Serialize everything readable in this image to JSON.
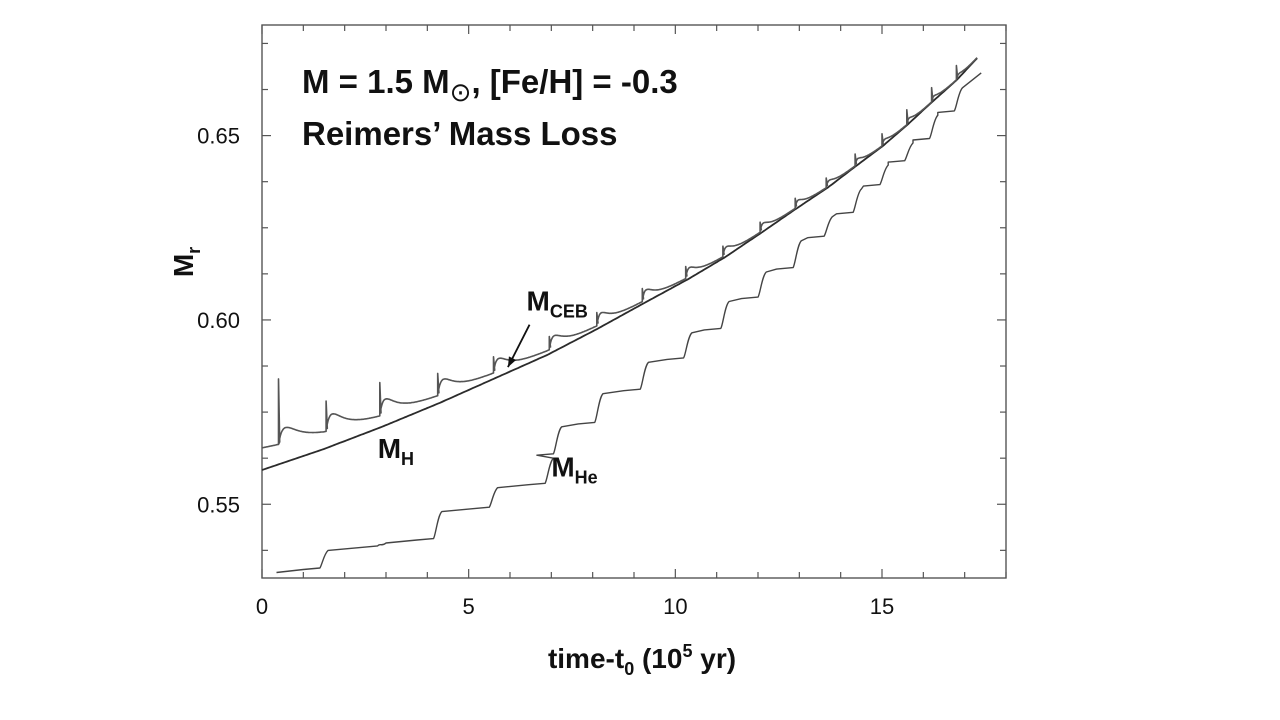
{
  "chart_data": {
    "type": "line",
    "title_line1": "M = 1.5 M",
    "title_sun": "⊙",
    "title_line1_rest": ", [Fe/H] = -0.3",
    "title_line2": "Reimers’ Mass Loss",
    "xlabel": {
      "main": "time-t",
      "sub": "0",
      "mid": " (10",
      "sup": "5",
      "end": " yr)"
    },
    "ylabel": {
      "main": "M",
      "sub": "r"
    },
    "xlim": [
      0,
      18
    ],
    "ylim": [
      0.53,
      0.68
    ],
    "x_ticks": [
      0,
      5,
      10,
      15
    ],
    "x_tick_labels": [
      "0",
      "5",
      "10",
      "15"
    ],
    "x_minor_step": 1,
    "y_ticks": [
      0.55,
      0.6,
      0.65
    ],
    "y_tick_labels": [
      "0.55",
      "0.60",
      "0.65"
    ],
    "y_minor_step": 0.0125,
    "annotations": {
      "mceb": {
        "main": "M",
        "sub": "CEB",
        "x": 6.4,
        "y": 0.6025,
        "arrow_to": [
          5.95,
          0.5872
        ]
      },
      "mh": {
        "main": "M",
        "sub": "H",
        "x": 2.8,
        "y": 0.5625
      },
      "mhe": {
        "main": "M",
        "sub": "He",
        "x": 7.0,
        "y": 0.5575
      }
    },
    "series": [
      {
        "name": "M_H",
        "x": [
          0,
          1.5,
          2.9,
          4.3,
          5.6,
          6.9,
          8.1,
          9.2,
          10.3,
          11.2,
          12.1,
          12.9,
          13.7,
          14.4,
          15.0,
          15.6,
          16.2,
          16.8,
          17.3
        ],
        "y": [
          0.5593,
          0.565,
          0.571,
          0.5775,
          0.584,
          0.5905,
          0.5975,
          0.6043,
          0.611,
          0.617,
          0.6238,
          0.63,
          0.636,
          0.642,
          0.647,
          0.6528,
          0.659,
          0.665,
          0.671
        ]
      },
      {
        "name": "M_CEB",
        "base_offset": 0.006,
        "pulses": [
          {
            "t": 0.4,
            "spike": 0.584,
            "bump": 0.0085,
            "w": 0.25
          },
          {
            "t": 1.55,
            "spike": 0.578,
            "bump": 0.009,
            "w": 0.22
          },
          {
            "t": 2.85,
            "spike": 0.583,
            "bump": 0.0085,
            "w": 0.2
          },
          {
            "t": 4.25,
            "spike": 0.5855,
            "bump": 0.008,
            "w": 0.2
          },
          {
            "t": 5.6,
            "spike": 0.59,
            "bump": 0.007,
            "w": 0.18
          },
          {
            "t": 6.95,
            "spike": 0.5955,
            "bump": 0.0065,
            "w": 0.17
          },
          {
            "t": 8.1,
            "spike": 0.602,
            "bump": 0.006,
            "w": 0.15
          },
          {
            "t": 9.2,
            "spike": 0.6085,
            "bump": 0.0055,
            "w": 0.14
          },
          {
            "t": 10.25,
            "spike": 0.6145,
            "bump": 0.005,
            "w": 0.13
          },
          {
            "t": 11.15,
            "spike": 0.62,
            "bump": 0.0045,
            "w": 0.12
          },
          {
            "t": 12.05,
            "spike": 0.6265,
            "bump": 0.004,
            "w": 0.11
          },
          {
            "t": 12.9,
            "spike": 0.633,
            "bump": 0.0035,
            "w": 0.1
          },
          {
            "t": 13.65,
            "spike": 0.6385,
            "bump": 0.003,
            "w": 0.1
          },
          {
            "t": 14.35,
            "spike": 0.645,
            "bump": 0.003,
            "w": 0.09
          },
          {
            "t": 15.0,
            "spike": 0.6505,
            "bump": 0.0025,
            "w": 0.09
          },
          {
            "t": 15.6,
            "spike": 0.657,
            "bump": 0.0025,
            "w": 0.08
          },
          {
            "t": 16.2,
            "spike": 0.663,
            "bump": 0.0022,
            "w": 0.08
          },
          {
            "t": 16.8,
            "spike": 0.669,
            "bump": 0.002,
            "w": 0.08
          }
        ]
      },
      {
        "name": "M_He",
        "start": [
          0.35,
          0.5315
        ],
        "end": [
          17.4,
          0.667
        ],
        "steps": [
          {
            "t": 1.45,
            "y": 0.5375
          },
          {
            "t": 2.85,
            "y": 0.5395
          },
          {
            "t": 4.2,
            "y": 0.548
          },
          {
            "t": 5.55,
            "y": 0.5545
          },
          {
            "t": 6.9,
            "y": 0.5625
          },
          {
            "t": 7.1,
            "y": 0.571
          },
          {
            "t": 8.1,
            "y": 0.58
          },
          {
            "t": 9.2,
            "y": 0.5885
          },
          {
            "t": 10.25,
            "y": 0.5965
          },
          {
            "t": 11.15,
            "y": 0.605
          },
          {
            "t": 12.05,
            "y": 0.613
          },
          {
            "t": 12.9,
            "y": 0.6215
          },
          {
            "t": 13.65,
            "y": 0.628
          },
          {
            "t": 14.35,
            "y": 0.6355
          },
          {
            "t": 15.0,
            "y": 0.642
          },
          {
            "t": 15.6,
            "y": 0.648
          },
          {
            "t": 16.2,
            "y": 0.6555
          },
          {
            "t": 16.8,
            "y": 0.663
          }
        ]
      }
    ]
  }
}
